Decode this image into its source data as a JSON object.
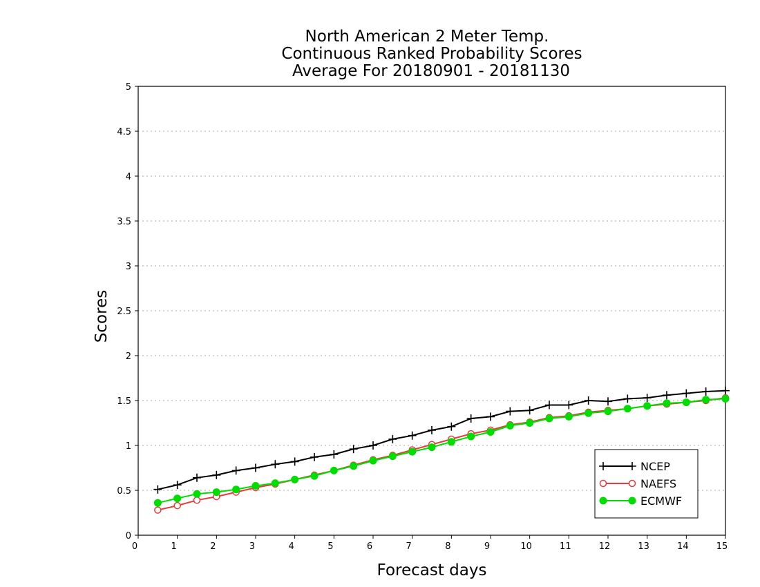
{
  "chart_data": {
    "type": "line",
    "title_lines": [
      "North American 2 Meter Temp.",
      "Continuous Ranked Probability Scores",
      "Average For 20180901 - 20181130"
    ],
    "xlabel": "Forecast days",
    "ylabel": "Scores",
    "xlim": [
      0,
      15
    ],
    "ylim": [
      0,
      5
    ],
    "xticks": [
      0,
      1,
      2,
      3,
      4,
      5,
      6,
      7,
      8,
      9,
      10,
      11,
      12,
      13,
      14,
      15
    ],
    "yticks": [
      0,
      0.5,
      1,
      1.5,
      2,
      2.5,
      3,
      3.5,
      4,
      4.5,
      5
    ],
    "grid": "horizontal dotted",
    "legend_position": "bottom-right",
    "x": [
      0.5,
      1,
      1.5,
      2,
      2.5,
      3,
      3.5,
      4,
      4.5,
      5,
      5.5,
      6,
      6.5,
      7,
      7.5,
      8,
      8.5,
      9,
      9.5,
      10,
      10.5,
      11,
      11.5,
      12,
      12.5,
      13,
      13.5,
      14,
      14.5,
      15
    ],
    "series": [
      {
        "name": "NCEP",
        "color": "#000000",
        "marker": "plus",
        "values": [
          0.51,
          0.56,
          0.64,
          0.67,
          0.72,
          0.75,
          0.79,
          0.82,
          0.87,
          0.9,
          0.96,
          1.0,
          1.07,
          1.11,
          1.17,
          1.21,
          1.3,
          1.32,
          1.38,
          1.39,
          1.45,
          1.45,
          1.5,
          1.49,
          1.52,
          1.53,
          1.56,
          1.58,
          1.6,
          1.61
        ]
      },
      {
        "name": "NAEFS",
        "color": "#e83a3a",
        "marker": "open-circle",
        "values": [
          0.28,
          0.33,
          0.39,
          0.43,
          0.48,
          0.53,
          0.57,
          0.62,
          0.67,
          0.72,
          0.78,
          0.84,
          0.89,
          0.95,
          1.01,
          1.07,
          1.13,
          1.17,
          1.23,
          1.26,
          1.31,
          1.33,
          1.37,
          1.39,
          1.41,
          1.44,
          1.46,
          1.48,
          1.5,
          1.53
        ]
      },
      {
        "name": "ECMWF",
        "color": "#00dd00",
        "marker": "filled-circle",
        "values": [
          0.36,
          0.41,
          0.46,
          0.48,
          0.51,
          0.55,
          0.58,
          0.62,
          0.66,
          0.72,
          0.77,
          0.83,
          0.88,
          0.93,
          0.98,
          1.04,
          1.1,
          1.15,
          1.22,
          1.25,
          1.3,
          1.32,
          1.36,
          1.38,
          1.41,
          1.44,
          1.47,
          1.48,
          1.51,
          1.52
        ]
      }
    ]
  }
}
